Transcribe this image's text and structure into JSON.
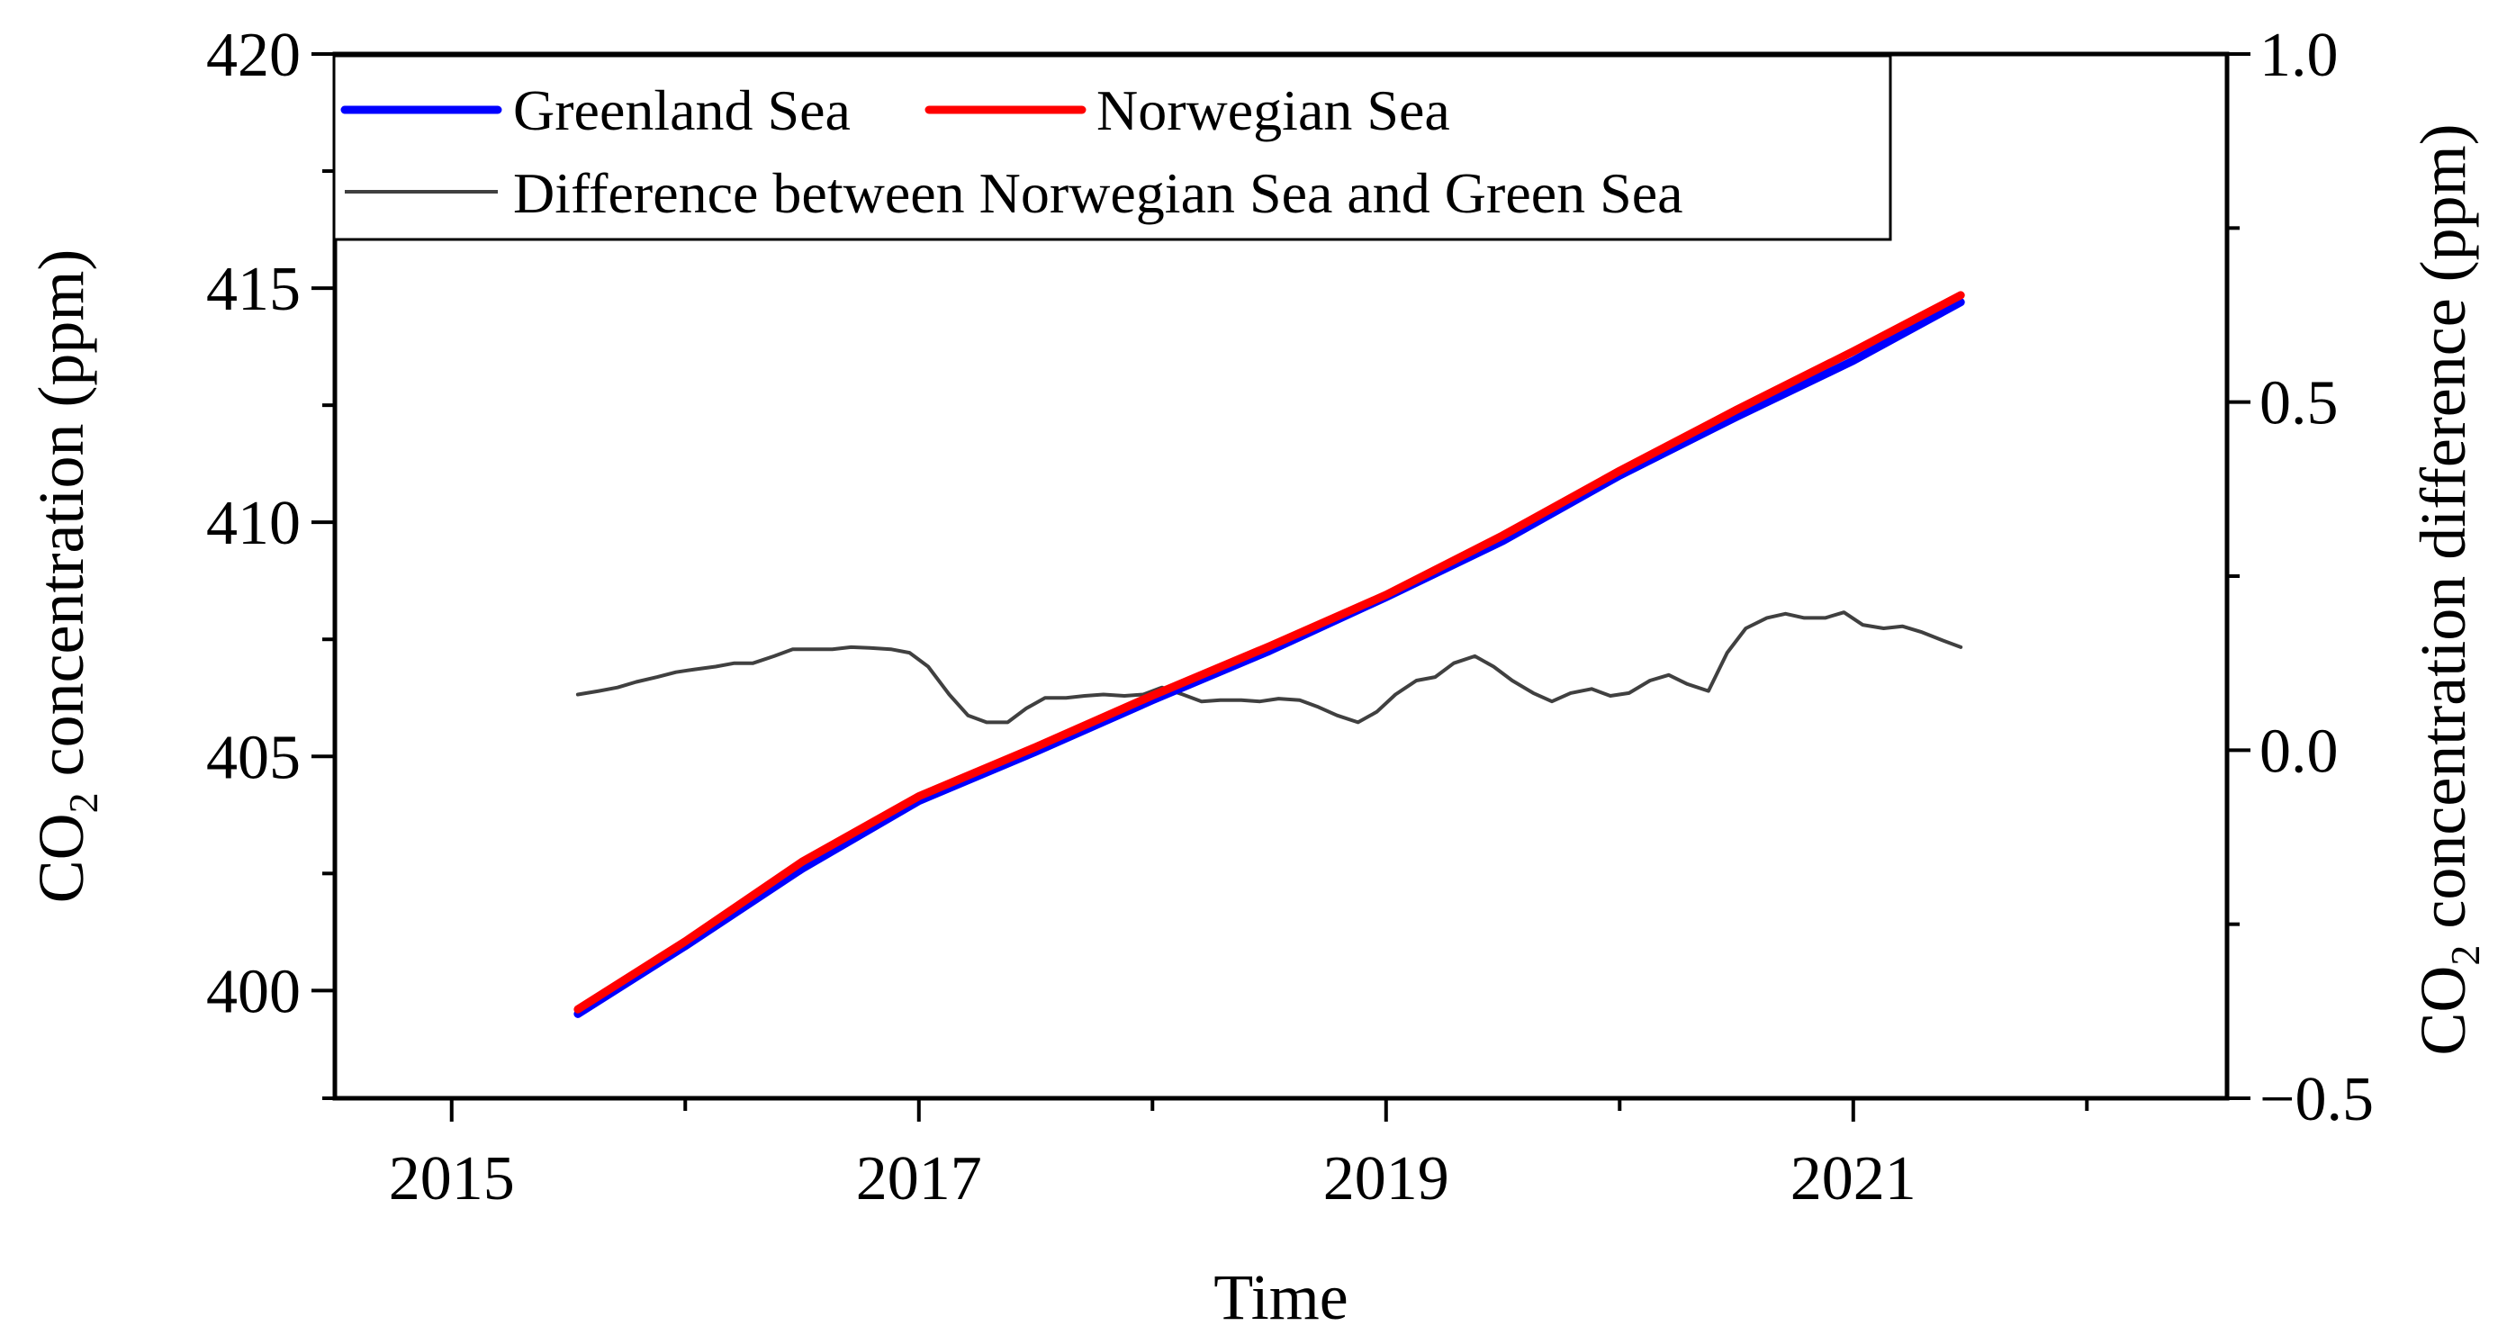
{
  "chart_data": {
    "type": "line",
    "xlabel": "Time",
    "ylabel": {
      "main": "CO",
      "sub": "2",
      "rest": " concentration (ppm)"
    },
    "y2label": {
      "main": "CO",
      "sub": "2",
      "rest": " concentration difference (ppm)"
    },
    "xlim": [
      2014.5,
      2022.6
    ],
    "ylim": [
      397.7,
      420
    ],
    "y2lim": [
      -0.5,
      1.0
    ],
    "x_ticks": [
      2015,
      2017,
      2019,
      2021
    ],
    "x_tick_labels": [
      "2015",
      "2017",
      "2019",
      "2021"
    ],
    "x_minor_ticks": [
      2016,
      2018,
      2020,
      2022
    ],
    "y_ticks": [
      400,
      405,
      410,
      415,
      420
    ],
    "y_tick_labels": [
      "400",
      "405",
      "410",
      "415",
      "420"
    ],
    "y2_ticks": [
      -0.5,
      0.0,
      0.5,
      1.0
    ],
    "y2_tick_labels": [
      "−0.5",
      "0.0",
      "0.5",
      "1.0"
    ],
    "y2_minor_ticks": [
      -0.25,
      0.25,
      0.75
    ],
    "legend": [
      {
        "name": "Greenland Sea",
        "color": "#0000ff",
        "style": "thick"
      },
      {
        "name": "Norwegian Sea",
        "color": "#ff0000",
        "style": "thick"
      },
      {
        "name": "Difference between Norwegian Sea and Green Sea",
        "color": "#404040",
        "style": "thin"
      }
    ],
    "series": [
      {
        "name": "Greenland Sea",
        "axis": "left",
        "color": "#0000ff",
        "x": [
          2015.54,
          2016.0,
          2016.5,
          2017.0,
          2017.5,
          2018.0,
          2018.5,
          2019.0,
          2019.5,
          2020.0,
          2020.5,
          2021.0,
          2021.46
        ],
        "values": [
          399.5,
          400.95,
          402.6,
          404.05,
          405.1,
          406.2,
          407.25,
          408.4,
          409.6,
          411.0,
          412.25,
          413.45,
          414.7
        ]
      },
      {
        "name": "Norwegian Sea",
        "axis": "left",
        "color": "#ff0000",
        "x": [
          2015.54,
          2016.0,
          2016.5,
          2017.0,
          2017.5,
          2018.0,
          2018.5,
          2019.0,
          2019.5,
          2020.0,
          2020.5,
          2021.0,
          2021.46
        ],
        "values": [
          399.6,
          401.05,
          402.75,
          404.15,
          405.2,
          406.3,
          407.35,
          408.45,
          409.72,
          411.1,
          412.4,
          413.65,
          414.85
        ]
      },
      {
        "name": "Difference between Norwegian Sea and Green Sea",
        "axis": "right",
        "color": "#404040",
        "x": [
          2015.54,
          2015.63,
          2015.71,
          2015.79,
          2015.88,
          2015.96,
          2016.04,
          2016.13,
          2016.21,
          2016.29,
          2016.38,
          2016.46,
          2016.54,
          2016.63,
          2016.71,
          2016.79,
          2016.88,
          2016.96,
          2017.04,
          2017.13,
          2017.21,
          2017.29,
          2017.38,
          2017.46,
          2017.54,
          2017.63,
          2017.71,
          2017.79,
          2017.88,
          2017.96,
          2018.04,
          2018.13,
          2018.21,
          2018.29,
          2018.38,
          2018.46,
          2018.54,
          2018.63,
          2018.71,
          2018.79,
          2018.88,
          2018.96,
          2019.04,
          2019.13,
          2019.21,
          2019.29,
          2019.38,
          2019.46,
          2019.54,
          2019.63,
          2019.71,
          2019.79,
          2019.88,
          2019.96,
          2020.04,
          2020.13,
          2020.21,
          2020.29,
          2020.38,
          2020.46,
          2020.54,
          2020.63,
          2020.71,
          2020.79,
          2020.88,
          2020.96,
          2021.04,
          2021.13,
          2021.21,
          2021.29,
          2021.38,
          2021.46
        ],
        "values": [
          0.08,
          0.085,
          0.09,
          0.098,
          0.105,
          0.112,
          0.116,
          0.12,
          0.125,
          0.125,
          0.135,
          0.145,
          0.145,
          0.145,
          0.148,
          0.147,
          0.145,
          0.14,
          0.12,
          0.08,
          0.05,
          0.04,
          0.04,
          0.06,
          0.075,
          0.075,
          0.078,
          0.08,
          0.078,
          0.08,
          0.09,
          0.08,
          0.07,
          0.072,
          0.072,
          0.07,
          0.074,
          0.072,
          0.062,
          0.05,
          0.04,
          0.055,
          0.08,
          0.1,
          0.105,
          0.125,
          0.135,
          0.12,
          0.1,
          0.082,
          0.07,
          0.082,
          0.088,
          0.078,
          0.082,
          0.1,
          0.108,
          0.095,
          0.085,
          0.14,
          0.175,
          0.19,
          0.196,
          0.19,
          0.19,
          0.198,
          0.18,
          0.175,
          0.178,
          0.17,
          0.158,
          0.148
        ]
      }
    ]
  }
}
